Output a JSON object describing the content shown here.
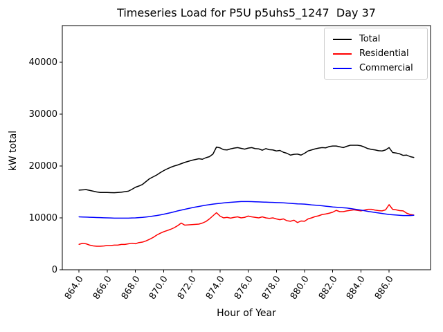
{
  "figure": {
    "title": "Timeseries Load for P5U p5uhs5_1247  Day 37",
    "xlabel": "Hour of Year",
    "ylabel": "kW total"
  },
  "legend": {
    "position": "upper right",
    "items": [
      {
        "label": "Total",
        "color": "#000000"
      },
      {
        "label": "Residential",
        "color": "#ff0000"
      },
      {
        "label": "Commercial",
        "color": "#0000ff"
      }
    ]
  },
  "chart_data": {
    "type": "line",
    "title": "Timeseries Load for P5U p5uhs5_1247  Day 37",
    "xlabel": "Hour of Year",
    "ylabel": "kW total",
    "grid": false,
    "legend_position": "upper right",
    "xlim": [
      862.81,
      888.94
    ],
    "ylim": [
      0,
      47067
    ],
    "xticks": [
      864,
      866,
      868,
      870,
      872,
      874,
      876,
      878,
      880,
      882,
      884,
      886
    ],
    "xtick_labels": [
      "864.0",
      "866.0",
      "868.0",
      "870.0",
      "872.0",
      "874.0",
      "876.0",
      "878.0",
      "880.0",
      "882.0",
      "884.0",
      "886.0"
    ],
    "yticks": [
      0,
      10000,
      20000,
      30000,
      40000
    ],
    "ytick_labels": [
      "0",
      "10000",
      "20000",
      "30000",
      "40000"
    ],
    "x": [
      864.0,
      864.25,
      864.5,
      864.75,
      865.0,
      865.25,
      865.5,
      865.75,
      866.0,
      866.25,
      866.5,
      866.75,
      867.0,
      867.25,
      867.5,
      867.75,
      868.0,
      868.25,
      868.5,
      868.75,
      869.0,
      869.25,
      869.5,
      869.75,
      870.0,
      870.25,
      870.5,
      870.75,
      871.0,
      871.25,
      871.5,
      871.75,
      872.0,
      872.25,
      872.5,
      872.75,
      873.0,
      873.25,
      873.5,
      873.75,
      874.0,
      874.25,
      874.5,
      874.75,
      875.0,
      875.25,
      875.5,
      875.75,
      876.0,
      876.25,
      876.5,
      876.75,
      877.0,
      877.25,
      877.5,
      877.75,
      878.0,
      878.25,
      878.5,
      878.75,
      879.0,
      879.25,
      879.5,
      879.75,
      880.0,
      880.25,
      880.5,
      880.75,
      881.0,
      881.25,
      881.5,
      881.75,
      882.0,
      882.25,
      882.5,
      882.75,
      883.0,
      883.25,
      883.5,
      883.75,
      884.0,
      884.25,
      884.5,
      884.75,
      885.0,
      885.25,
      885.5,
      885.75,
      886.0,
      886.25,
      886.5,
      886.75,
      887.0,
      887.25,
      887.5,
      887.75
    ],
    "series": [
      {
        "name": "Total",
        "color": "#000000",
        "values": [
          15350,
          15400,
          15450,
          15300,
          15150,
          15000,
          14900,
          14900,
          14900,
          14870,
          14850,
          14900,
          14950,
          15050,
          15150,
          15500,
          15900,
          16150,
          16450,
          17000,
          17550,
          17900,
          18250,
          18700,
          19100,
          19450,
          19750,
          20000,
          20200,
          20450,
          20700,
          20900,
          21100,
          21250,
          21400,
          21300,
          21600,
          21800,
          22300,
          23650,
          23500,
          23150,
          23100,
          23300,
          23450,
          23550,
          23400,
          23250,
          23450,
          23550,
          23350,
          23300,
          23050,
          23350,
          23150,
          23100,
          22900,
          23000,
          22650,
          22450,
          22100,
          22250,
          22300,
          22100,
          22450,
          22900,
          23100,
          23300,
          23450,
          23550,
          23500,
          23750,
          23850,
          23850,
          23700,
          23550,
          23800,
          24000,
          24000,
          24000,
          23900,
          23650,
          23350,
          23200,
          23100,
          22950,
          22900,
          23100,
          23550,
          22600,
          22500,
          22350,
          22050,
          22100,
          21800,
          21650
        ]
      },
      {
        "name": "Residential",
        "color": "#ff0000",
        "values": [
          4900,
          5100,
          5000,
          4750,
          4600,
          4530,
          4530,
          4580,
          4670,
          4670,
          4750,
          4750,
          4890,
          4890,
          5000,
          5110,
          5020,
          5240,
          5330,
          5560,
          5870,
          6220,
          6670,
          7020,
          7330,
          7560,
          7800,
          8100,
          8500,
          9000,
          8600,
          8650,
          8700,
          8750,
          8800,
          9000,
          9300,
          9800,
          10400,
          11000,
          10350,
          10000,
          10100,
          9950,
          10100,
          10200,
          10000,
          10100,
          10350,
          10200,
          10100,
          10000,
          10200,
          10000,
          9900,
          10000,
          9800,
          9650,
          9800,
          9450,
          9350,
          9550,
          9100,
          9400,
          9350,
          9800,
          10000,
          10250,
          10400,
          10650,
          10750,
          10900,
          11100,
          11450,
          11200,
          11200,
          11350,
          11450,
          11550,
          11450,
          11350,
          11500,
          11650,
          11650,
          11500,
          11400,
          11350,
          11550,
          12550,
          11650,
          11550,
          11400,
          11350,
          10900,
          10650,
          10550
        ]
      },
      {
        "name": "Commercial",
        "color": "#0000ff",
        "values": [
          10200,
          10170,
          10150,
          10120,
          10100,
          10070,
          10050,
          10020,
          10000,
          9980,
          9950,
          9950,
          9950,
          9950,
          9950,
          9980,
          10000,
          10050,
          10100,
          10170,
          10250,
          10350,
          10450,
          10570,
          10700,
          10850,
          11000,
          11170,
          11350,
          11500,
          11650,
          11800,
          11950,
          12080,
          12200,
          12330,
          12450,
          12550,
          12650,
          12730,
          12800,
          12880,
          12950,
          13000,
          13050,
          13100,
          13150,
          13150,
          13150,
          13130,
          13100,
          13080,
          13050,
          13030,
          13000,
          12980,
          12950,
          12930,
          12900,
          12850,
          12800,
          12750,
          12700,
          12680,
          12650,
          12580,
          12500,
          12450,
          12400,
          12330,
          12250,
          12180,
          12100,
          12050,
          12000,
          11950,
          11900,
          11800,
          11700,
          11600,
          11500,
          11380,
          11250,
          11150,
          11050,
          10950,
          10850,
          10750,
          10650,
          10600,
          10550,
          10500,
          10450,
          10450,
          10450,
          10500
        ]
      }
    ]
  }
}
